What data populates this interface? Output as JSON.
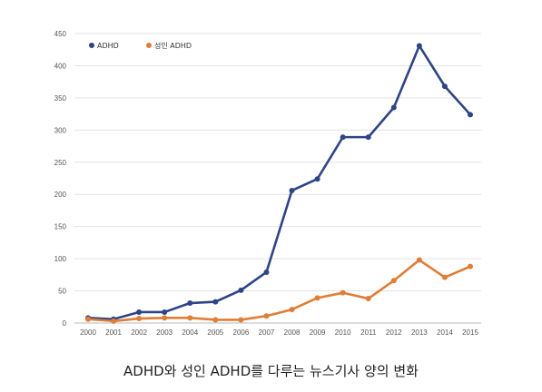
{
  "chart_data": {
    "type": "line",
    "title": "ADHD와 성인 ADHD를 다루는 뉴스기사 양의 변화",
    "x": [
      "2000",
      "2001",
      "2002",
      "2003",
      "2004",
      "2005",
      "2006",
      "2007",
      "2008",
      "2009",
      "2010",
      "2011",
      "2012",
      "2013",
      "2014",
      "2015"
    ],
    "ylim": [
      0,
      450
    ],
    "yticks": [
      0,
      50,
      100,
      150,
      200,
      250,
      300,
      350,
      400,
      450
    ],
    "grid": true,
    "legend_position": "top-left",
    "series": [
      {
        "name": "ADHD",
        "color": "#2d4486",
        "values": [
          8,
          6,
          17,
          17,
          31,
          33,
          51,
          79,
          206,
          224,
          289,
          289,
          335,
          431,
          368,
          324
        ]
      },
      {
        "name": "성인 ADHD",
        "color": "#e07d36",
        "values": [
          6,
          3,
          7,
          8,
          8,
          5,
          5,
          11,
          21,
          39,
          47,
          38,
          66,
          98,
          71,
          88
        ]
      }
    ]
  }
}
